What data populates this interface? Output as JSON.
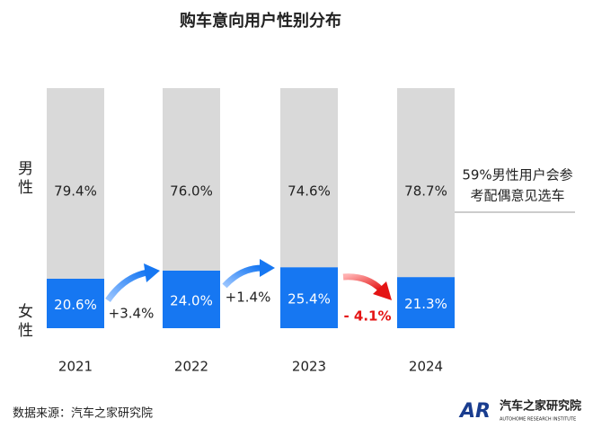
{
  "chart_data": {
    "type": "stacked_bar_100",
    "title": "购车意向用户性别分布",
    "categories": [
      "2021",
      "2022",
      "2023",
      "2024"
    ],
    "ylim": [
      0,
      100
    ],
    "series": [
      {
        "name": "女性",
        "color": "#1677f2",
        "values": [
          20.6,
          24.0,
          25.4,
          21.3
        ],
        "value_labels": [
          "20.6%",
          "24.0%",
          "25.4%",
          "21.3%"
        ]
      },
      {
        "name": "男性",
        "color": "#d9d9d9",
        "values": [
          79.4,
          76.0,
          74.6,
          78.7
        ],
        "value_labels": [
          "79.4%",
          "76.0%",
          "74.6%",
          "78.7%"
        ]
      }
    ],
    "changes": [
      "+3.4%",
      "+1.4%",
      "- 4.1%"
    ],
    "note": [
      "59%男性用户会参",
      "考配偶意见选车"
    ],
    "source": "数据来源：汽车之家研究院",
    "logo": {
      "mark": "AR",
      "name": "汽车之家研究院",
      "subtitle": "AUTOHOME RESEARCH INSTITUTE"
    }
  }
}
